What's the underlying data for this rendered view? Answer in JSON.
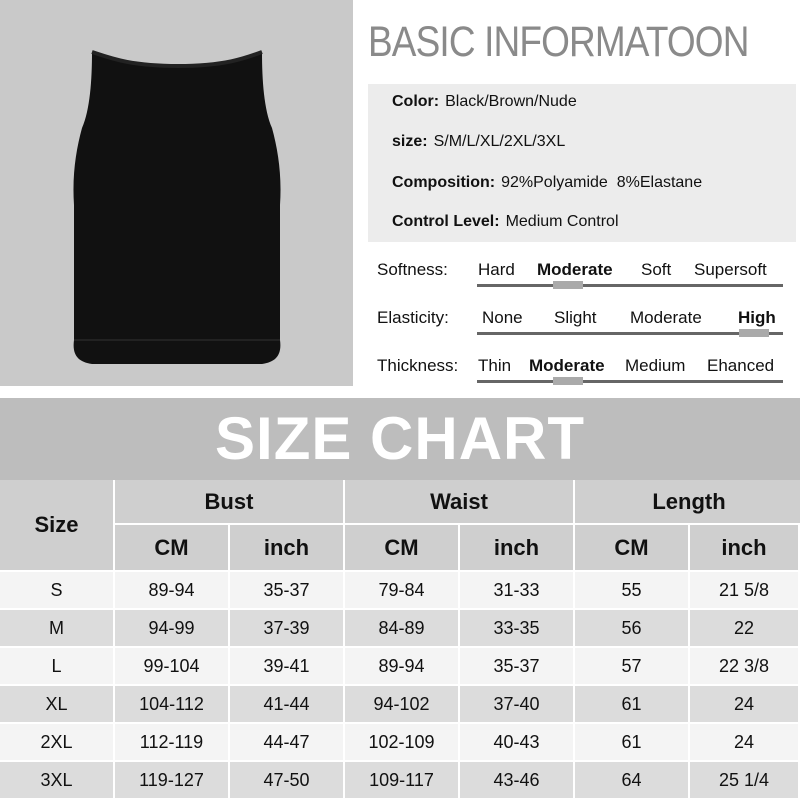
{
  "basic_info": {
    "title": "BASIC INFORMATOON",
    "rows": [
      {
        "label": "Color:",
        "value": "Black/Brown/Nude"
      },
      {
        "label": "size:",
        "value": "S/M/L/XL/2XL/3XL"
      },
      {
        "label": "Composition:",
        "value": "92%Polyamide  8%Elastane"
      },
      {
        "label": "Control Level:",
        "value": "Medium Control"
      }
    ]
  },
  "scales": [
    {
      "label": "Softness:",
      "options": [
        "Hard",
        "Moderate",
        "Soft",
        "Supersoft"
      ],
      "selected": 1
    },
    {
      "label": "Elasticity:",
      "options": [
        "None",
        "Slight",
        "Moderate",
        "High"
      ],
      "selected": 3
    },
    {
      "label": "Thickness:",
      "options": [
        "Thin",
        "Moderate",
        "Medium",
        "Ehanced"
      ],
      "selected": 1
    }
  ],
  "size_chart": {
    "title": "SIZE CHART",
    "size_header": "Size",
    "groups": [
      "Bust",
      "Waist",
      "Length"
    ],
    "units": [
      "CM",
      "inch",
      "CM",
      "inch",
      "CM",
      "inch"
    ],
    "rows": [
      [
        "S",
        "89-94",
        "35-37",
        "79-84",
        "31-33",
        "55",
        "21 5/8"
      ],
      [
        "M",
        "94-99",
        "37-39",
        "84-89",
        "33-35",
        "56",
        "22"
      ],
      [
        "L",
        "99-104",
        "39-41",
        "89-94",
        "35-37",
        "57",
        "22 3/8"
      ],
      [
        "XL",
        "104-112",
        "41-44",
        "94-102",
        "37-40",
        "61",
        "24"
      ],
      [
        "2XL",
        "112-119",
        "44-47",
        "102-109",
        "40-43",
        "61",
        "24"
      ],
      [
        "3XL",
        "119-127",
        "47-50",
        "109-117",
        "43-46",
        "64",
        "25 1/4"
      ]
    ]
  },
  "colors": {
    "row_light": "#f4f4f4",
    "row_dark": "#dcdcdc",
    "header": "#cfcfcf",
    "title_band": "#bdbdbd"
  }
}
